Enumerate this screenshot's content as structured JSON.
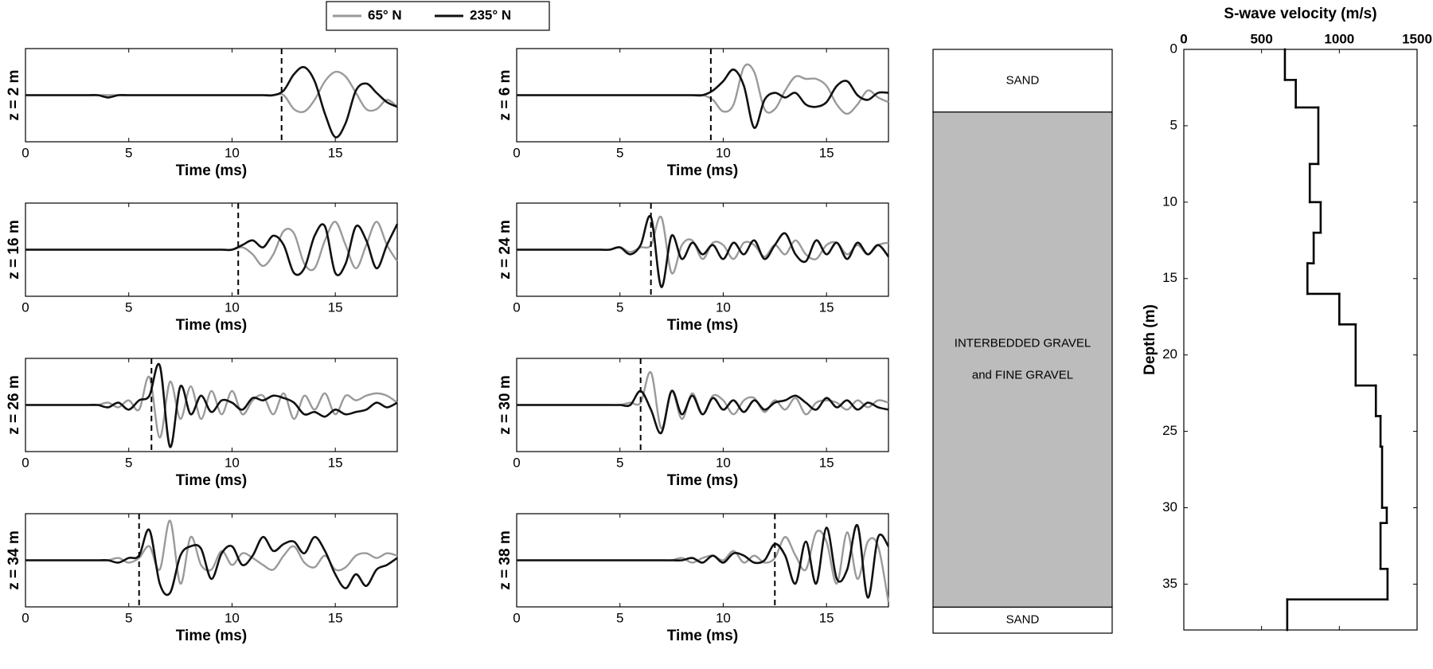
{
  "legend": [
    {
      "name": "65° N",
      "color": "#9a9a9a"
    },
    {
      "name": "235° N",
      "color": "#111111"
    }
  ],
  "time_ms": [
    0,
    0.5,
    1,
    1.5,
    2,
    2.5,
    3,
    3.5,
    4,
    4.5,
    5,
    5.5,
    6,
    6.5,
    7,
    7.5,
    8,
    8.5,
    9,
    9.5,
    10,
    10.5,
    11,
    11.5,
    12,
    12.5,
    13,
    13.5,
    14,
    14.5,
    15,
    15.5,
    16,
    16.5,
    17,
    17.5,
    18
  ],
  "chart_data": [
    {
      "type": "wave",
      "ylabel": "z = 2 m",
      "xlabel": "Time (ms)",
      "xlim": [
        0,
        18
      ],
      "xticks": [
        0,
        5,
        10,
        15
      ],
      "ylim": [
        -1,
        1
      ],
      "arrival": 12.4,
      "series": [
        {
          "values": [
            0,
            0,
            0,
            0,
            0,
            0,
            0,
            0,
            0,
            0,
            0,
            0,
            0,
            0,
            0,
            0,
            0,
            0,
            0,
            0,
            0,
            0,
            0,
            0,
            0,
            0,
            -0.3,
            -0.35,
            -0.1,
            0.3,
            0.5,
            0.4,
            0.05,
            -0.3,
            -0.3,
            -0.1,
            -0.25
          ]
        },
        {
          "values": [
            0,
            0,
            0,
            0,
            0,
            0,
            0,
            0,
            -0.05,
            0,
            0,
            0,
            0,
            0,
            0,
            0,
            0,
            0,
            0,
            0,
            0,
            0,
            0,
            0,
            0,
            0.1,
            0.45,
            0.6,
            0.3,
            -0.4,
            -0.9,
            -0.6,
            0.1,
            0.25,
            0.05,
            -0.15,
            -0.25
          ]
        }
      ]
    },
    {
      "type": "wave",
      "ylabel": "z = 6 m",
      "xlabel": "Time (ms)",
      "xlim": [
        0,
        18
      ],
      "xticks": [
        0,
        5,
        10,
        15
      ],
      "ylim": [
        -1,
        1
      ],
      "arrival": 9.4,
      "series": [
        {
          "values": [
            0,
            0,
            0,
            0,
            0,
            0,
            0,
            0,
            0,
            0,
            0,
            0,
            0,
            0,
            0,
            0,
            0,
            0,
            0,
            -0.1,
            -0.35,
            -0.2,
            0.6,
            0.5,
            -0.3,
            -0.3,
            0.1,
            0.4,
            0.35,
            0.35,
            0.2,
            -0.2,
            -0.4,
            -0.2,
            0.1,
            -0.05,
            -0.15
          ]
        },
        {
          "values": [
            0,
            0,
            0,
            0,
            0,
            0,
            0,
            0,
            0,
            0,
            0,
            0,
            0,
            0,
            0,
            0,
            0,
            0,
            0,
            0.1,
            0.3,
            0.55,
            0.2,
            -0.7,
            -0.1,
            0.05,
            -0.05,
            0.05,
            -0.2,
            -0.25,
            -0.15,
            0.2,
            0.3,
            0,
            -0.1,
            0.05,
            0.05
          ]
        }
      ]
    },
    {
      "type": "wave",
      "ylabel": "z = 16 m",
      "xlabel": "Time (ms)",
      "xlim": [
        0,
        18
      ],
      "xticks": [
        0,
        5,
        10,
        15
      ],
      "ylim": [
        -1,
        1
      ],
      "arrival": 10.3,
      "series": [
        {
          "values": [
            0,
            0,
            0,
            0,
            0,
            0,
            0,
            0,
            0,
            0,
            0,
            0,
            0,
            0,
            0,
            0,
            0,
            0,
            0,
            0,
            0,
            0.05,
            -0.1,
            -0.35,
            -0.1,
            0.4,
            0.35,
            -0.3,
            -0.4,
            0.2,
            0.6,
            0.1,
            -0.4,
            0.1,
            0.6,
            0.1,
            -0.25
          ]
        },
        {
          "values": [
            0,
            0,
            0,
            0,
            0,
            0,
            0,
            0,
            0,
            0,
            0,
            0,
            0,
            0,
            0,
            0,
            0,
            0,
            0,
            0,
            0,
            0.1,
            0.2,
            0.05,
            0.3,
            0.1,
            -0.5,
            -0.4,
            0.3,
            0.5,
            -0.5,
            -0.3,
            0.5,
            0.2,
            -0.4,
            0.1,
            0.55
          ]
        }
      ]
    },
    {
      "type": "wave",
      "ylabel": "z = 24 m",
      "xlabel": "Time (ms)",
      "xlim": [
        0,
        18
      ],
      "xticks": [
        0,
        5,
        10,
        15
      ],
      "ylim": [
        -1,
        1
      ],
      "arrival": 6.5,
      "series": [
        {
          "values": [
            0,
            0,
            0,
            0,
            0,
            0,
            0,
            0,
            0,
            0,
            0.05,
            -0.05,
            0.05,
            0.1,
            0.7,
            -0.5,
            0.1,
            0.2,
            -0.2,
            0.15,
            0.1,
            -0.2,
            0.15,
            0.1,
            -0.15,
            0.1,
            -0.1,
            0.2,
            -0.1,
            -0.2,
            0.1,
            0.15,
            -0.1,
            0.1,
            -0.1,
            0.1,
            0.15
          ]
        },
        {
          "values": [
            0,
            0,
            0,
            0,
            0,
            0,
            0,
            0,
            0,
            0,
            0.05,
            -0.1,
            0.1,
            0.7,
            -0.8,
            0.3,
            -0.2,
            0.15,
            -0.1,
            0.1,
            -0.2,
            0.15,
            -0.1,
            0.2,
            -0.2,
            0.1,
            0.35,
            -0.1,
            -0.25,
            0.2,
            -0.1,
            0.15,
            -0.2,
            0.15,
            -0.1,
            0.1,
            -0.15
          ]
        }
      ]
    },
    {
      "type": "wave",
      "ylabel": "z = 26 m",
      "xlabel": "Time (ms)",
      "xlim": [
        0,
        18
      ],
      "xticks": [
        0,
        5,
        10,
        15
      ],
      "ylim": [
        -1,
        1
      ],
      "arrival": 6.1,
      "series": [
        {
          "values": [
            0,
            0,
            0,
            0,
            0,
            0,
            0,
            0,
            0.05,
            -0.05,
            0.1,
            -0.1,
            0.6,
            -0.7,
            0.5,
            -0.3,
            0.4,
            -0.3,
            0.3,
            -0.2,
            0.3,
            -0.2,
            0.1,
            0.2,
            -0.2,
            0.25,
            -0.3,
            0.2,
            -0.1,
            0.25,
            -0.2,
            0.2,
            0.1,
            0.2,
            0.25,
            0.2,
            0.05
          ]
        },
        {
          "values": [
            0,
            0,
            0,
            0,
            0,
            0,
            0,
            0,
            -0.05,
            0.05,
            -0.1,
            0.1,
            0.2,
            0.85,
            -0.9,
            0.4,
            -0.2,
            0.2,
            -0.15,
            0.1,
            0.05,
            -0.1,
            0.15,
            0.1,
            0.2,
            0.15,
            0.05,
            -0.2,
            -0.15,
            -0.25,
            -0.1,
            -0.2,
            -0.15,
            -0.1,
            0.05,
            -0.05,
            0.05
          ]
        }
      ]
    },
    {
      "type": "wave",
      "ylabel": "z = 30 m",
      "xlabel": "Time (ms)",
      "xlim": [
        0,
        18
      ],
      "xticks": [
        0,
        5,
        10,
        15
      ],
      "ylim": [
        -1,
        1
      ],
      "arrival": 6.0,
      "series": [
        {
          "values": [
            0,
            0,
            0,
            0,
            0,
            0,
            0,
            0,
            0,
            0,
            0,
            0.05,
            0.05,
            0.7,
            -0.5,
            0.3,
            -0.3,
            0.25,
            -0.2,
            0.2,
            0.1,
            -0.2,
            0.1,
            0.15,
            -0.15,
            0.1,
            -0.1,
            0.15,
            -0.2,
            0.05,
            0.1,
            0.05,
            -0.1,
            0.1,
            -0.05,
            0.1,
            0.05
          ]
        },
        {
          "values": [
            0,
            0,
            0,
            0,
            0,
            0,
            0,
            0,
            0,
            0,
            0,
            0,
            0.3,
            -0.1,
            -0.6,
            0.3,
            -0.2,
            0.2,
            -0.2,
            0.15,
            -0.1,
            0.1,
            -0.15,
            0.1,
            -0.1,
            0.05,
            0.1,
            0.2,
            0.05,
            -0.1,
            0.15,
            -0.05,
            0.1,
            -0.1,
            0.05,
            -0.05,
            -0.1
          ]
        }
      ]
    },
    {
      "type": "wave",
      "ylabel": "z = 34 m",
      "xlabel": "Time (ms)",
      "xlim": [
        0,
        18
      ],
      "xticks": [
        0,
        5,
        10,
        15
      ],
      "ylim": [
        -1,
        1
      ],
      "arrival": 5.5,
      "series": [
        {
          "values": [
            0,
            0,
            0,
            0,
            0,
            0,
            0,
            0,
            0,
            0.05,
            -0.05,
            0.05,
            0.3,
            -0.2,
            0.85,
            -0.5,
            0.5,
            -0.1,
            -0.2,
            0.2,
            -0.1,
            0.15,
            0.05,
            -0.1,
            -0.2,
            0.1,
            0.3,
            -0.05,
            -0.15,
            0.1,
            -0.2,
            -0.15,
            0.1,
            0.15,
            0.05,
            0.15,
            0.1
          ]
        },
        {
          "values": [
            0,
            0,
            0,
            0,
            0,
            0,
            0,
            0,
            0,
            -0.05,
            0.05,
            0.1,
            0.65,
            -0.5,
            -0.7,
            0.1,
            0.3,
            0.25,
            -0.4,
            0.15,
            0.3,
            -0.1,
            0.1,
            0.5,
            0.2,
            0.35,
            0.4,
            0.15,
            0.5,
            0.2,
            -0.3,
            -0.6,
            -0.3,
            -0.55,
            -0.2,
            -0.1,
            0.05
          ]
        }
      ]
    },
    {
      "type": "wave",
      "ylabel": "z = 38 m",
      "xlabel": "Time (ms)",
      "xlim": [
        0,
        18
      ],
      "xticks": [
        0,
        5,
        10,
        15
      ],
      "ylim": [
        -1,
        1
      ],
      "arrival": 12.5,
      "series": [
        {
          "values": [
            0,
            0,
            0,
            0,
            0,
            0,
            0,
            0,
            0,
            0,
            0,
            0,
            0,
            0,
            0,
            0,
            0.05,
            -0.05,
            0.05,
            0.1,
            0,
            0.2,
            -0.05,
            0.1,
            -0.05,
            0.05,
            0.5,
            0.1,
            -0.2,
            0.6,
            0.4,
            -0.5,
            0.6,
            -0.4,
            0.4,
            0.3,
            -0.9
          ]
        },
        {
          "values": [
            0,
            0,
            0,
            0,
            0,
            0,
            0,
            0,
            0,
            0,
            0,
            0,
            0,
            0,
            0,
            0,
            0,
            0.05,
            -0.05,
            0.1,
            -0.05,
            0.15,
            0.1,
            -0.05,
            0,
            0.35,
            0.1,
            -0.5,
            0.4,
            -0.5,
            0.7,
            -0.4,
            -0.2,
            0.75,
            -0.8,
            0.5,
            0.3
          ]
        }
      ]
    },
    {
      "type": "column",
      "ylim": [
        0,
        38.2
      ],
      "layers": [
        {
          "label": [
            "SAND"
          ],
          "top": 0,
          "bottom": 4.1,
          "color": "#ffffff"
        },
        {
          "label": [
            "INTERBEDDED GRAVEL",
            "and FINE GRAVEL"
          ],
          "top": 4.1,
          "bottom": 36.5,
          "color": "#bcbcbc"
        },
        {
          "label": [
            "SAND"
          ],
          "top": 36.5,
          "bottom": 38.2,
          "color": "#ffffff"
        }
      ]
    },
    {
      "type": "step",
      "title": "S-wave velocity (m/s)",
      "ylabel": "Depth (m)",
      "xlim": [
        0,
        1500
      ],
      "xticks": [
        0,
        500,
        1000,
        1500
      ],
      "ylim": [
        0,
        38
      ],
      "yticks": [
        0,
        5,
        10,
        15,
        20,
        25,
        30,
        35
      ],
      "color": "#000000",
      "depths": [
        0,
        2,
        3.8,
        7.5,
        10,
        12,
        14,
        16,
        18,
        22,
        24,
        26,
        30,
        31,
        34,
        36,
        38
      ],
      "values": [
        650,
        720,
        865,
        810,
        880,
        835,
        795,
        1000,
        1105,
        1235,
        1265,
        1275,
        1305,
        1265,
        1310,
        665
      ]
    }
  ]
}
